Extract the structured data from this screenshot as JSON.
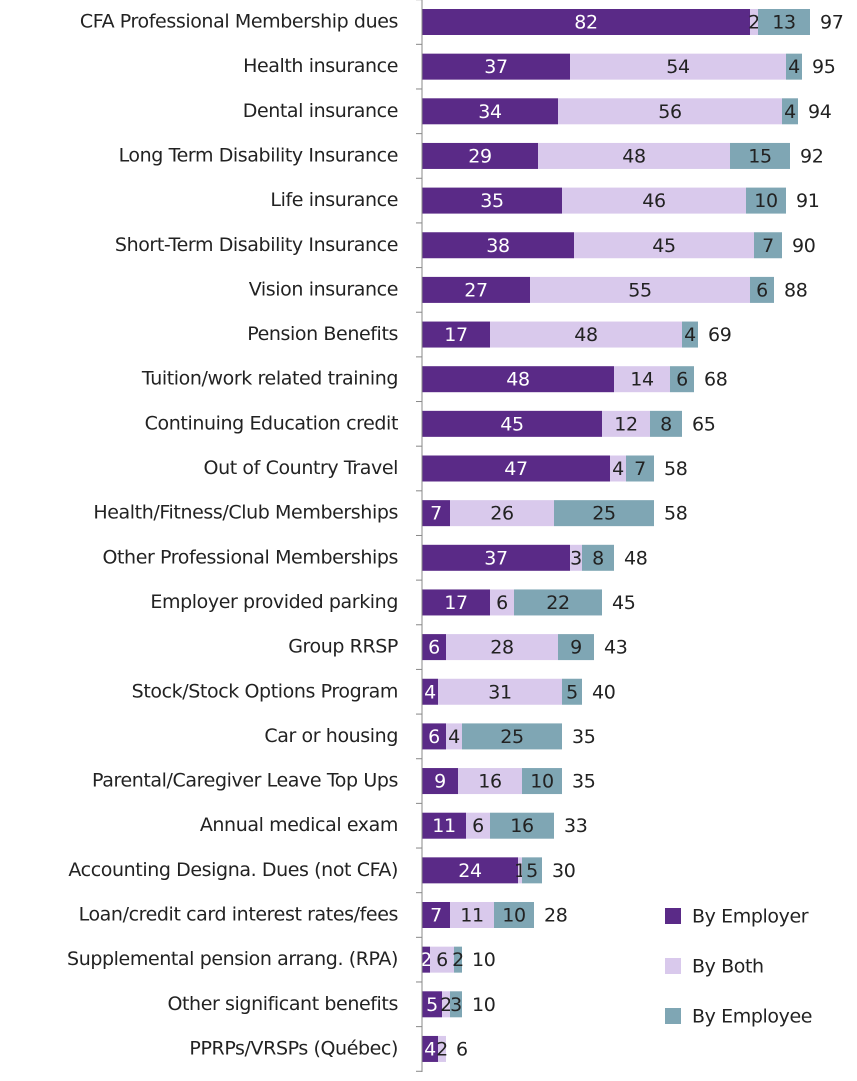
{
  "chart_data": {
    "type": "stacked-bar-horizontal",
    "categories": [
      "CFA Professional Membership dues",
      "Health insurance",
      "Dental insurance",
      "Long Term Disability Insurance",
      "Life insurance",
      "Short-Term Disability Insurance",
      "Vision insurance",
      "Pension Benefits",
      "Tuition/work related training",
      "Continuing Education credit",
      "Out of Country Travel",
      "Health/Fitness/Club Memberships",
      "Other Professional Memberships",
      "Employer provided parking",
      "Group RRSP",
      "Stock/Stock Options Program",
      "Car or housing",
      "Parental/Caregiver Leave Top Ups",
      "Annual medical exam",
      "Accounting Designa. Dues (not CFA)",
      "Loan/credit card interest rates/fees",
      "Supplemental pension arrang. (RPA)",
      "Other significant benefits",
      "PPRPs/VRSPs (Québec)"
    ],
    "series": [
      {
        "name": "By Employer",
        "color": "#5a2a87",
        "values": [
          82,
          37,
          34,
          29,
          35,
          38,
          27,
          17,
          48,
          45,
          47,
          7,
          37,
          17,
          6,
          4,
          6,
          9,
          11,
          24,
          7,
          2,
          5,
          4
        ]
      },
      {
        "name": "By Both",
        "color": "#d9c9ec",
        "values": [
          2,
          54,
          56,
          48,
          46,
          45,
          55,
          48,
          14,
          12,
          4,
          26,
          3,
          6,
          28,
          31,
          4,
          16,
          6,
          1,
          11,
          6,
          2,
          2
        ]
      },
      {
        "name": "By Employee",
        "color": "#7fa6b4",
        "values": [
          13,
          4,
          4,
          15,
          10,
          7,
          6,
          4,
          6,
          8,
          7,
          25,
          8,
          22,
          9,
          5,
          25,
          10,
          16,
          5,
          10,
          2,
          3,
          null
        ]
      }
    ],
    "totals": [
      97,
      95,
      94,
      92,
      91,
      90,
      88,
      69,
      68,
      65,
      58,
      58,
      48,
      45,
      43,
      40,
      35,
      35,
      33,
      30,
      28,
      10,
      10,
      6
    ],
    "xlim": [
      0,
      100
    ],
    "legend": "bottom-right"
  }
}
